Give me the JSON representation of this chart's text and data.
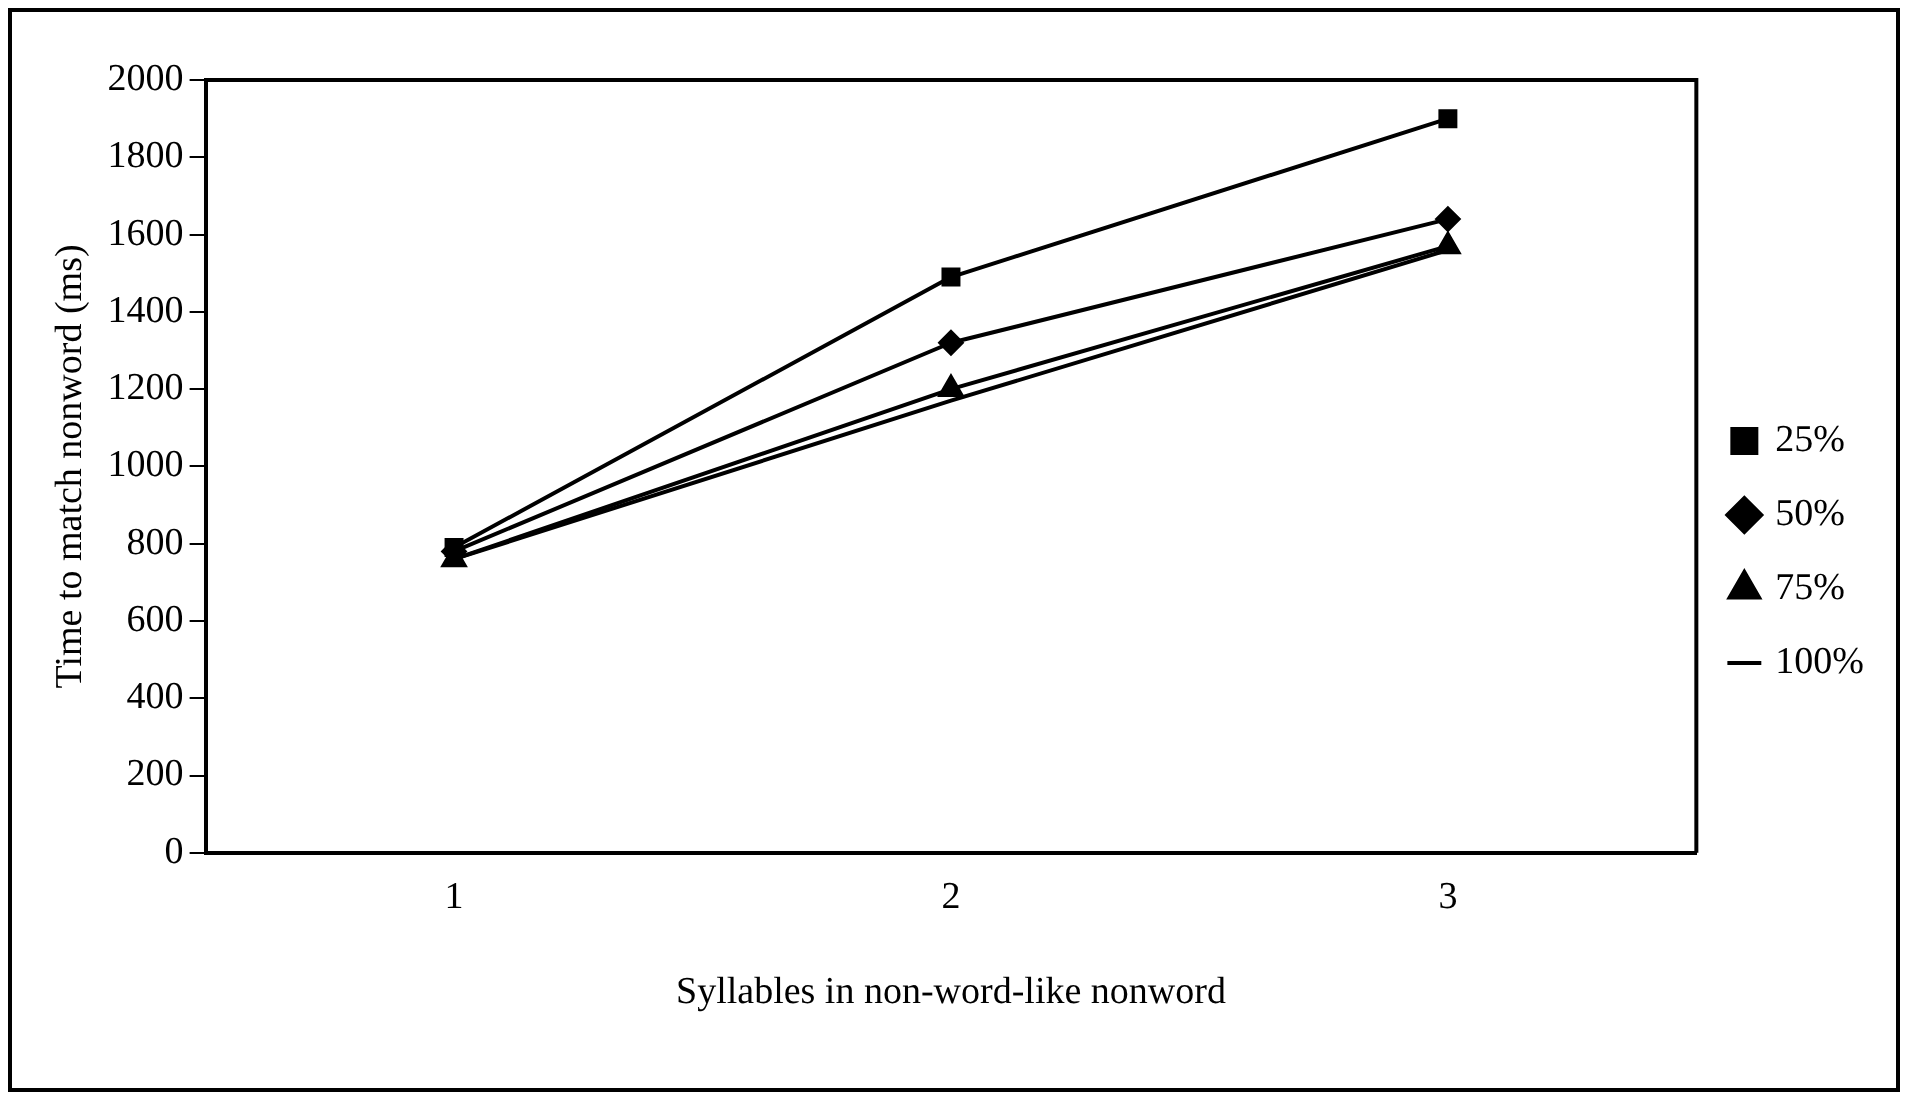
{
  "chart_data": {
    "type": "line",
    "xlabel": "Syllables in non-word-like nonword",
    "ylabel": "Time to match nonword (ms)",
    "categories": [
      "1",
      "2",
      "3"
    ],
    "series": [
      {
        "name": "25%",
        "color": "#000000",
        "marker": "square",
        "values": [
          790,
          1490,
          1900
        ]
      },
      {
        "name": "50%",
        "color": "#000000",
        "marker": "diamond",
        "values": [
          780,
          1320,
          1640
        ]
      },
      {
        "name": "75%",
        "color": "#000000",
        "marker": "triangle",
        "values": [
          760,
          1200,
          1570
        ]
      },
      {
        "name": "100%",
        "color": "#000000",
        "marker": "none",
        "values": [
          760,
          1170,
          1560
        ]
      }
    ],
    "ylim": [
      0,
      2000
    ],
    "yticks": [
      0,
      200,
      400,
      600,
      800,
      1000,
      1200,
      1400,
      1600,
      1800,
      2000
    ],
    "grid": false,
    "legend": "right",
    "line_style": "solid"
  }
}
